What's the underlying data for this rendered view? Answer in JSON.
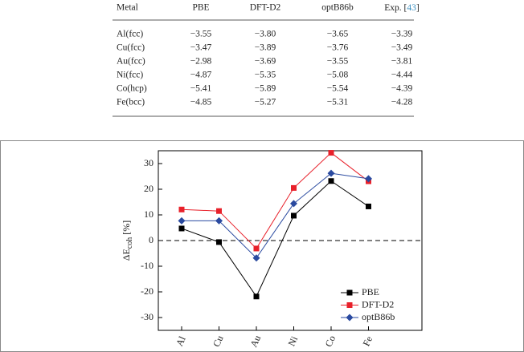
{
  "table": {
    "header": [
      "Metal",
      "PBE",
      "DFT-D2",
      "optB86b"
    ],
    "exp_header": {
      "text": "Exp. [",
      "ref": "43",
      "close": "]"
    },
    "rows": [
      [
        "Al(fcc)",
        "−3.55",
        "−3.80",
        "−3.65",
        "−3.39"
      ],
      [
        "Cu(fcc)",
        "−3.47",
        "−3.89",
        "−3.76",
        "−3.49"
      ],
      [
        "Au(fcc)",
        "−2.98",
        "−3.69",
        "−3.55",
        "−3.81"
      ],
      [
        "Ni(fcc)",
        "−4.87",
        "−5.35",
        "−5.08",
        "−4.44"
      ],
      [
        "Co(hcp)",
        "−5.41",
        "−5.89",
        "−5.54",
        "−4.39"
      ],
      [
        "Fe(bcc)",
        "−4.85",
        "−5.27",
        "−5.31",
        "−4.28"
      ]
    ]
  },
  "chart_data": {
    "type": "line",
    "y_label": "ΔE",
    "y_label_sub": "coh",
    "y_label_unit": "[%]",
    "categories": [
      "Al",
      "Cu",
      "Au",
      "Ni",
      "Co",
      "Fe"
    ],
    "series": [
      {
        "name": "PBE",
        "color": "#000000",
        "marker": "square",
        "values": [
          4.7,
          -0.6,
          -21.8,
          9.7,
          23.2,
          13.3
        ]
      },
      {
        "name": "DFT-D2",
        "color": "#e8202a",
        "marker": "square",
        "values": [
          12.1,
          11.5,
          -3.1,
          20.5,
          34.2,
          23.1
        ]
      },
      {
        "name": "optB86b",
        "color": "#2a4aa0",
        "marker": "diamond",
        "values": [
          7.7,
          7.7,
          -6.8,
          14.4,
          26.2,
          24.1
        ]
      }
    ],
    "ylim": [
      -35,
      35
    ],
    "yticks": [
      -30,
      -20,
      -10,
      0,
      10,
      20,
      30
    ],
    "reference_line": 0,
    "legend": "lower right"
  }
}
